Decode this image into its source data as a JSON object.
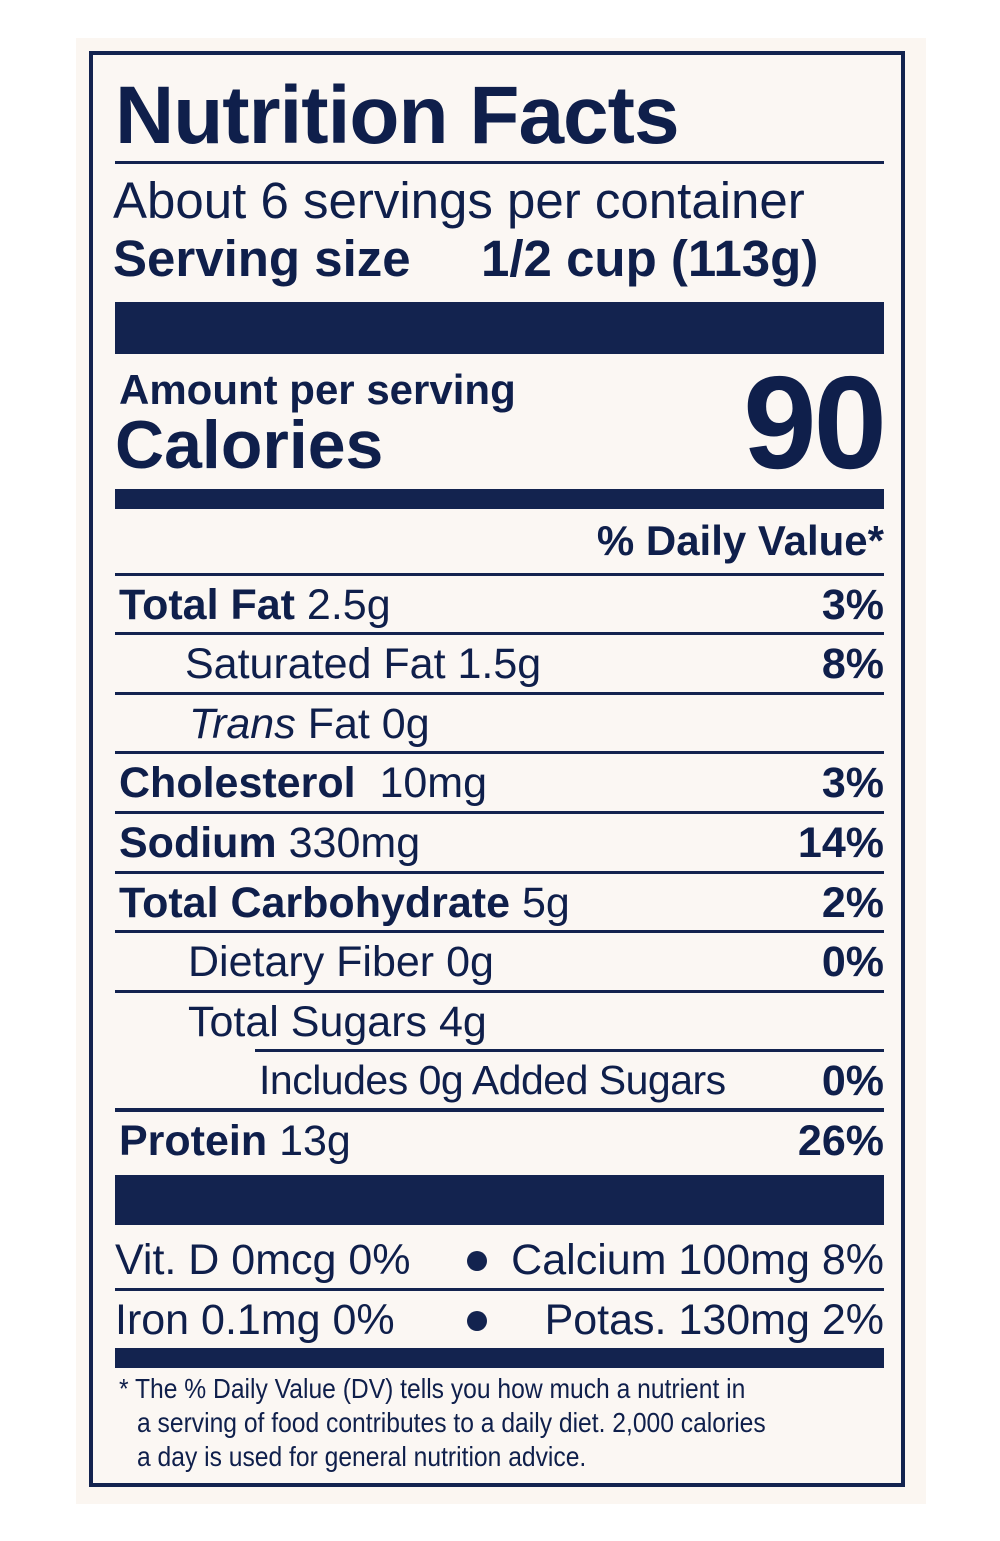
{
  "label": {
    "title": "Nutrition Facts",
    "servings_per_container": "About 6 servings per container",
    "serving_size_label": "Serving size",
    "serving_size_value": "1/2 cup (113g)",
    "amount_per_serving": "Amount per serving",
    "calories_label": "Calories",
    "calories_value": "90",
    "daily_value_header": "% Daily Value*",
    "nutrients": [
      {
        "name": "Total Fat",
        "amount": "2.5g",
        "dv": "3%"
      },
      {
        "name": "Saturated Fat",
        "amount": "1.5g",
        "dv": "8%"
      },
      {
        "name_italic": "Trans",
        "name": "Fat",
        "amount": "0g",
        "dv": ""
      },
      {
        "name": "Cholesterol",
        "amount": "10mg",
        "dv": "3%"
      },
      {
        "name": "Sodium",
        "amount": "330mg",
        "dv": "14%"
      },
      {
        "name": "Total Carbohydrate",
        "amount": "5g",
        "dv": "2%"
      },
      {
        "name": "Dietary Fiber",
        "amount": "0g",
        "dv": "0%"
      },
      {
        "name": "Total Sugars",
        "amount": "4g",
        "dv": ""
      },
      {
        "name": "Includes 0g Added Sugars",
        "amount": "",
        "dv": "0%"
      },
      {
        "name": "Protein",
        "amount": "13g",
        "dv": "26%"
      }
    ],
    "vitamins": [
      {
        "left": "Vit. D 0mcg 0%",
        "right": "Calcium 100mg 8%"
      },
      {
        "left": "Iron 0.1mg 0%",
        "right": "Potas. 130mg 2%"
      }
    ],
    "footnote": [
      "* The % Daily Value (DV) tells you how much a nutrient in",
      "a serving of food contributes to a daily diet. 2,000 calories",
      "a day is used for general nutrition advice."
    ],
    "colors": {
      "ink": "#13234f",
      "paper": "#fbf7f3"
    }
  }
}
